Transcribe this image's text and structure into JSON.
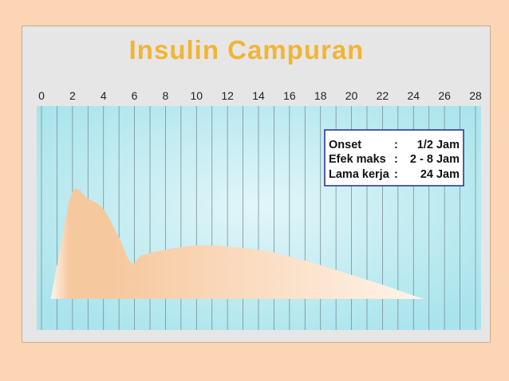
{
  "chart_data": {
    "type": "area",
    "title": "Insulin Campuran",
    "xlabel": "",
    "ylabel": "",
    "xlim": [
      0,
      28
    ],
    "ylim": [
      0,
      1
    ],
    "x_ticks": [
      0,
      2,
      4,
      6,
      8,
      10,
      12,
      14,
      16,
      18,
      20,
      22,
      24,
      26,
      28
    ],
    "grid": true,
    "series": [
      {
        "x": [
          0.6,
          1.2,
          2.0,
          3.0,
          4.0,
          5.0,
          5.8,
          6.5,
          8.0,
          10.0,
          12.0,
          14.0,
          16.0,
          18.0,
          20.0,
          22.0,
          23.0,
          24.0,
          24.7
        ],
        "values": [
          0.0,
          0.45,
          0.98,
          0.92,
          0.82,
          0.56,
          0.33,
          0.4,
          0.45,
          0.49,
          0.48,
          0.45,
          0.39,
          0.31,
          0.22,
          0.13,
          0.08,
          0.03,
          0.0
        ]
      }
    ],
    "legend": {
      "placement": "top-right",
      "rows": [
        {
          "label": "Onset",
          "sep": ":",
          "value": "1/2 Jam"
        },
        {
          "label": "Efek maks",
          "sep": ":",
          "value": "2 - 8 Jam"
        },
        {
          "label": "Lama kerja",
          "sep": ":",
          "value": "24 Jam"
        }
      ]
    },
    "colors": {
      "title": "#f2b434",
      "plot_bg_edge": "#a9e4ec",
      "plot_bg_center": "#e2f6f9",
      "grid_line": "#7a8f94",
      "area_light": "#fff4ea",
      "area_dark": "#f6c89e",
      "legend_border": "#2d3a8c",
      "slide_bg": "#fcd5b4",
      "frame_bg": "#e6e6e6"
    }
  }
}
